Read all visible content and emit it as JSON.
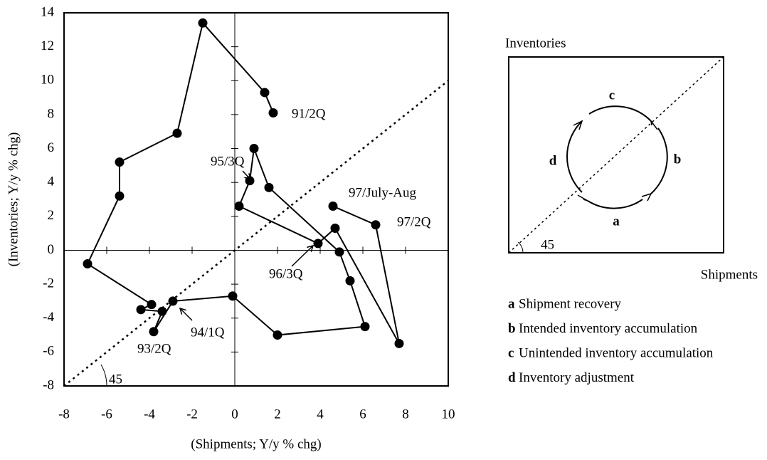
{
  "chart_data": {
    "type": "line",
    "x_label": "(Shipments; Y/y % chg)",
    "y_label": "(Inventories; Y/y % chg)",
    "x": [
      1.8,
      1.4,
      -1.5,
      -2.7,
      -5.4,
      -5.4,
      -6.9,
      -3.9,
      -4.4,
      -3.4,
      -3.8,
      -2.9,
      -0.1,
      2.0,
      6.1,
      5.4,
      4.9,
      1.6,
      0.9,
      0.7,
      0.2,
      3.9,
      4.7,
      7.7,
      6.6,
      4.6
    ],
    "values": [
      8.1,
      9.3,
      13.4,
      6.9,
      5.2,
      3.2,
      -0.8,
      -3.2,
      -3.5,
      -3.6,
      -4.8,
      -3.0,
      -2.7,
      -5.0,
      -4.5,
      -1.8,
      -0.1,
      3.7,
      6.0,
      4.1,
      2.6,
      0.4,
      1.3,
      -5.5,
      1.5,
      2.6
    ],
    "color": "#000000",
    "xlim": [
      -8,
      10
    ],
    "xticks": [
      -8,
      -6,
      -4,
      -2,
      0,
      2,
      4,
      6,
      8,
      10
    ],
    "ylim": [
      -8,
      14
    ],
    "yticks": [
      -8,
      -6,
      -4,
      -2,
      0,
      2,
      4,
      6,
      8,
      10,
      12,
      14
    ],
    "annotations": [
      "91/2Q",
      "95/3Q",
      "97/July-Aug",
      "97/2Q",
      "96/3Q",
      "94/1Q",
      "93/2Q",
      "45"
    ]
  },
  "diagram": {
    "y_label": "Inventories",
    "x_label": "Shipments",
    "angle": "45",
    "phases": [
      "a",
      "b",
      "c",
      "d"
    ],
    "legend": [
      {
        "key": "a",
        "text": "Shipment recovery"
      },
      {
        "key": "b",
        "text": "Intended inventory accumulation"
      },
      {
        "key": "c",
        "text": "Unintended inventory accumulation"
      },
      {
        "key": "d",
        "text": "Inventory adjustment"
      }
    ]
  }
}
